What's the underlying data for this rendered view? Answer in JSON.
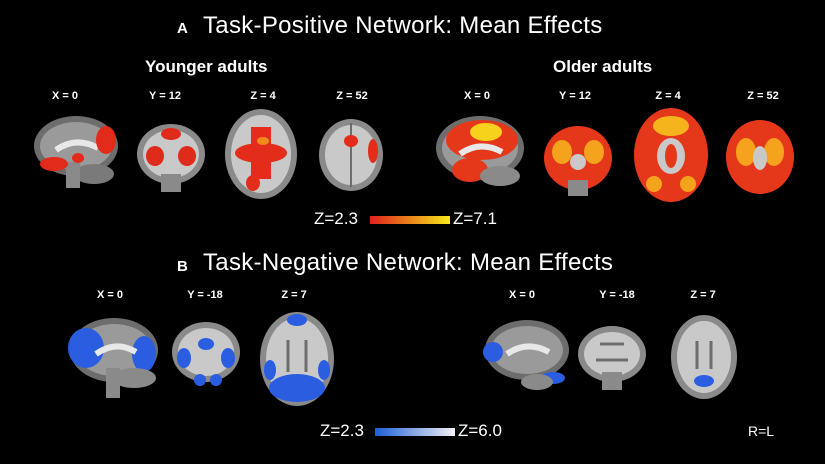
{
  "panel_a": {
    "letter": "A",
    "title": "Task-Positive Network: Mean Effects",
    "groups": [
      {
        "name": "Younger adults",
        "coords": [
          "X = 0",
          "Y = 12",
          "Z = 4",
          "Z = 52"
        ]
      },
      {
        "name": "Older adults",
        "coords": [
          "X = 0",
          "Y = 12",
          "Z = 4",
          "Z = 52"
        ]
      }
    ],
    "scale": {
      "min_label": "Z=2.3",
      "max_label": "Z=7.1",
      "color_low": "#e0201c",
      "color_high": "#f6e81a"
    }
  },
  "panel_b": {
    "letter": "B",
    "title": "Task-Negative Network: Mean Effects",
    "groups": [
      {
        "coords": [
          "X = 0",
          "Y = -18",
          "Z = 7"
        ]
      },
      {
        "coords": [
          "X = 0",
          "Y = -18",
          "Z = 7"
        ]
      }
    ],
    "scale": {
      "min_label": "Z=2.3",
      "max_label": "Z=6.0",
      "color_low": "#1e5fd6",
      "color_high": "#f2f2f2"
    },
    "orientation_note": "R=L"
  }
}
